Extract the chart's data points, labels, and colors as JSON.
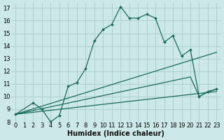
{
  "xlabel": "Humidex (Indice chaleur)",
  "background_color": "#cce8e8",
  "grid_color": "#b0d0d0",
  "line_color": "#1a6b5a",
  "xlim": [
    -0.5,
    23.5
  ],
  "ylim": [
    8,
    17.4
  ],
  "xticks": [
    0,
    1,
    2,
    3,
    4,
    5,
    6,
    7,
    8,
    9,
    10,
    11,
    12,
    13,
    14,
    15,
    16,
    17,
    18,
    19,
    20,
    21,
    22,
    23
  ],
  "yticks": [
    8,
    9,
    10,
    11,
    12,
    13,
    14,
    15,
    16,
    17
  ],
  "lines": [
    {
      "x": [
        0,
        2,
        3,
        4,
        5,
        6,
        7,
        8,
        9,
        10,
        11,
        12,
        13,
        14,
        15,
        16,
        17,
        18,
        19,
        20,
        21,
        22,
        23
      ],
      "y": [
        8.6,
        9.5,
        9.0,
        8.0,
        8.5,
        10.8,
        11.1,
        12.2,
        14.4,
        15.3,
        15.7,
        17.1,
        16.2,
        16.2,
        16.5,
        16.2,
        14.3,
        14.8,
        13.2,
        13.7,
        10.0,
        10.4,
        10.6
      ],
      "has_markers": true
    },
    {
      "x": [
        0,
        23
      ],
      "y": [
        8.6,
        13.5
      ],
      "has_markers": false
    },
    {
      "x": [
        0,
        20,
        21,
        22,
        23
      ],
      "y": [
        8.6,
        11.55,
        10.0,
        10.35,
        10.6
      ],
      "has_markers": false
    },
    {
      "x": [
        0,
        23
      ],
      "y": [
        8.6,
        10.4
      ],
      "has_markers": false
    }
  ],
  "marker": "D",
  "markersize": 2.0,
  "linewidth": 0.9,
  "xlabel_fontsize": 7,
  "tick_fontsize": 6
}
